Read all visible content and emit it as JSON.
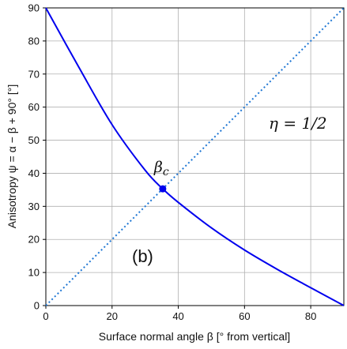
{
  "chart_data": {
    "type": "line",
    "xlabel": "Surface normal angle  β   [° from vertical]",
    "ylabel": "Anisotropy   ψ = α − β + 90°   [°]",
    "xlim": [
      0,
      90
    ],
    "ylim": [
      0,
      90
    ],
    "xticks": [
      "0",
      "20",
      "40",
      "60",
      "80"
    ],
    "yticks": [
      "0",
      "10",
      "20",
      "30",
      "40",
      "50",
      "60",
      "70",
      "80",
      "90"
    ],
    "grid": true,
    "series": [
      {
        "style": "solid",
        "color": "#0000ee",
        "x": [
          0,
          10,
          20,
          30,
          35.3,
          40,
          50,
          60,
          70,
          80,
          90
        ],
        "y": [
          90,
          72,
          54.7,
          40.9,
          35.3,
          31.2,
          23.5,
          16.8,
          10.9,
          5.4,
          0
        ]
      },
      {
        "style": "dotted",
        "color": "#1f77d4",
        "x": [
          0,
          90
        ],
        "y": [
          0,
          90
        ]
      }
    ],
    "marker": {
      "label": "βc",
      "x": 35.3,
      "y": 35.3,
      "color": "#0000ee"
    },
    "annotations": {
      "eta": "η = 1/2",
      "panel": "(b)"
    }
  }
}
